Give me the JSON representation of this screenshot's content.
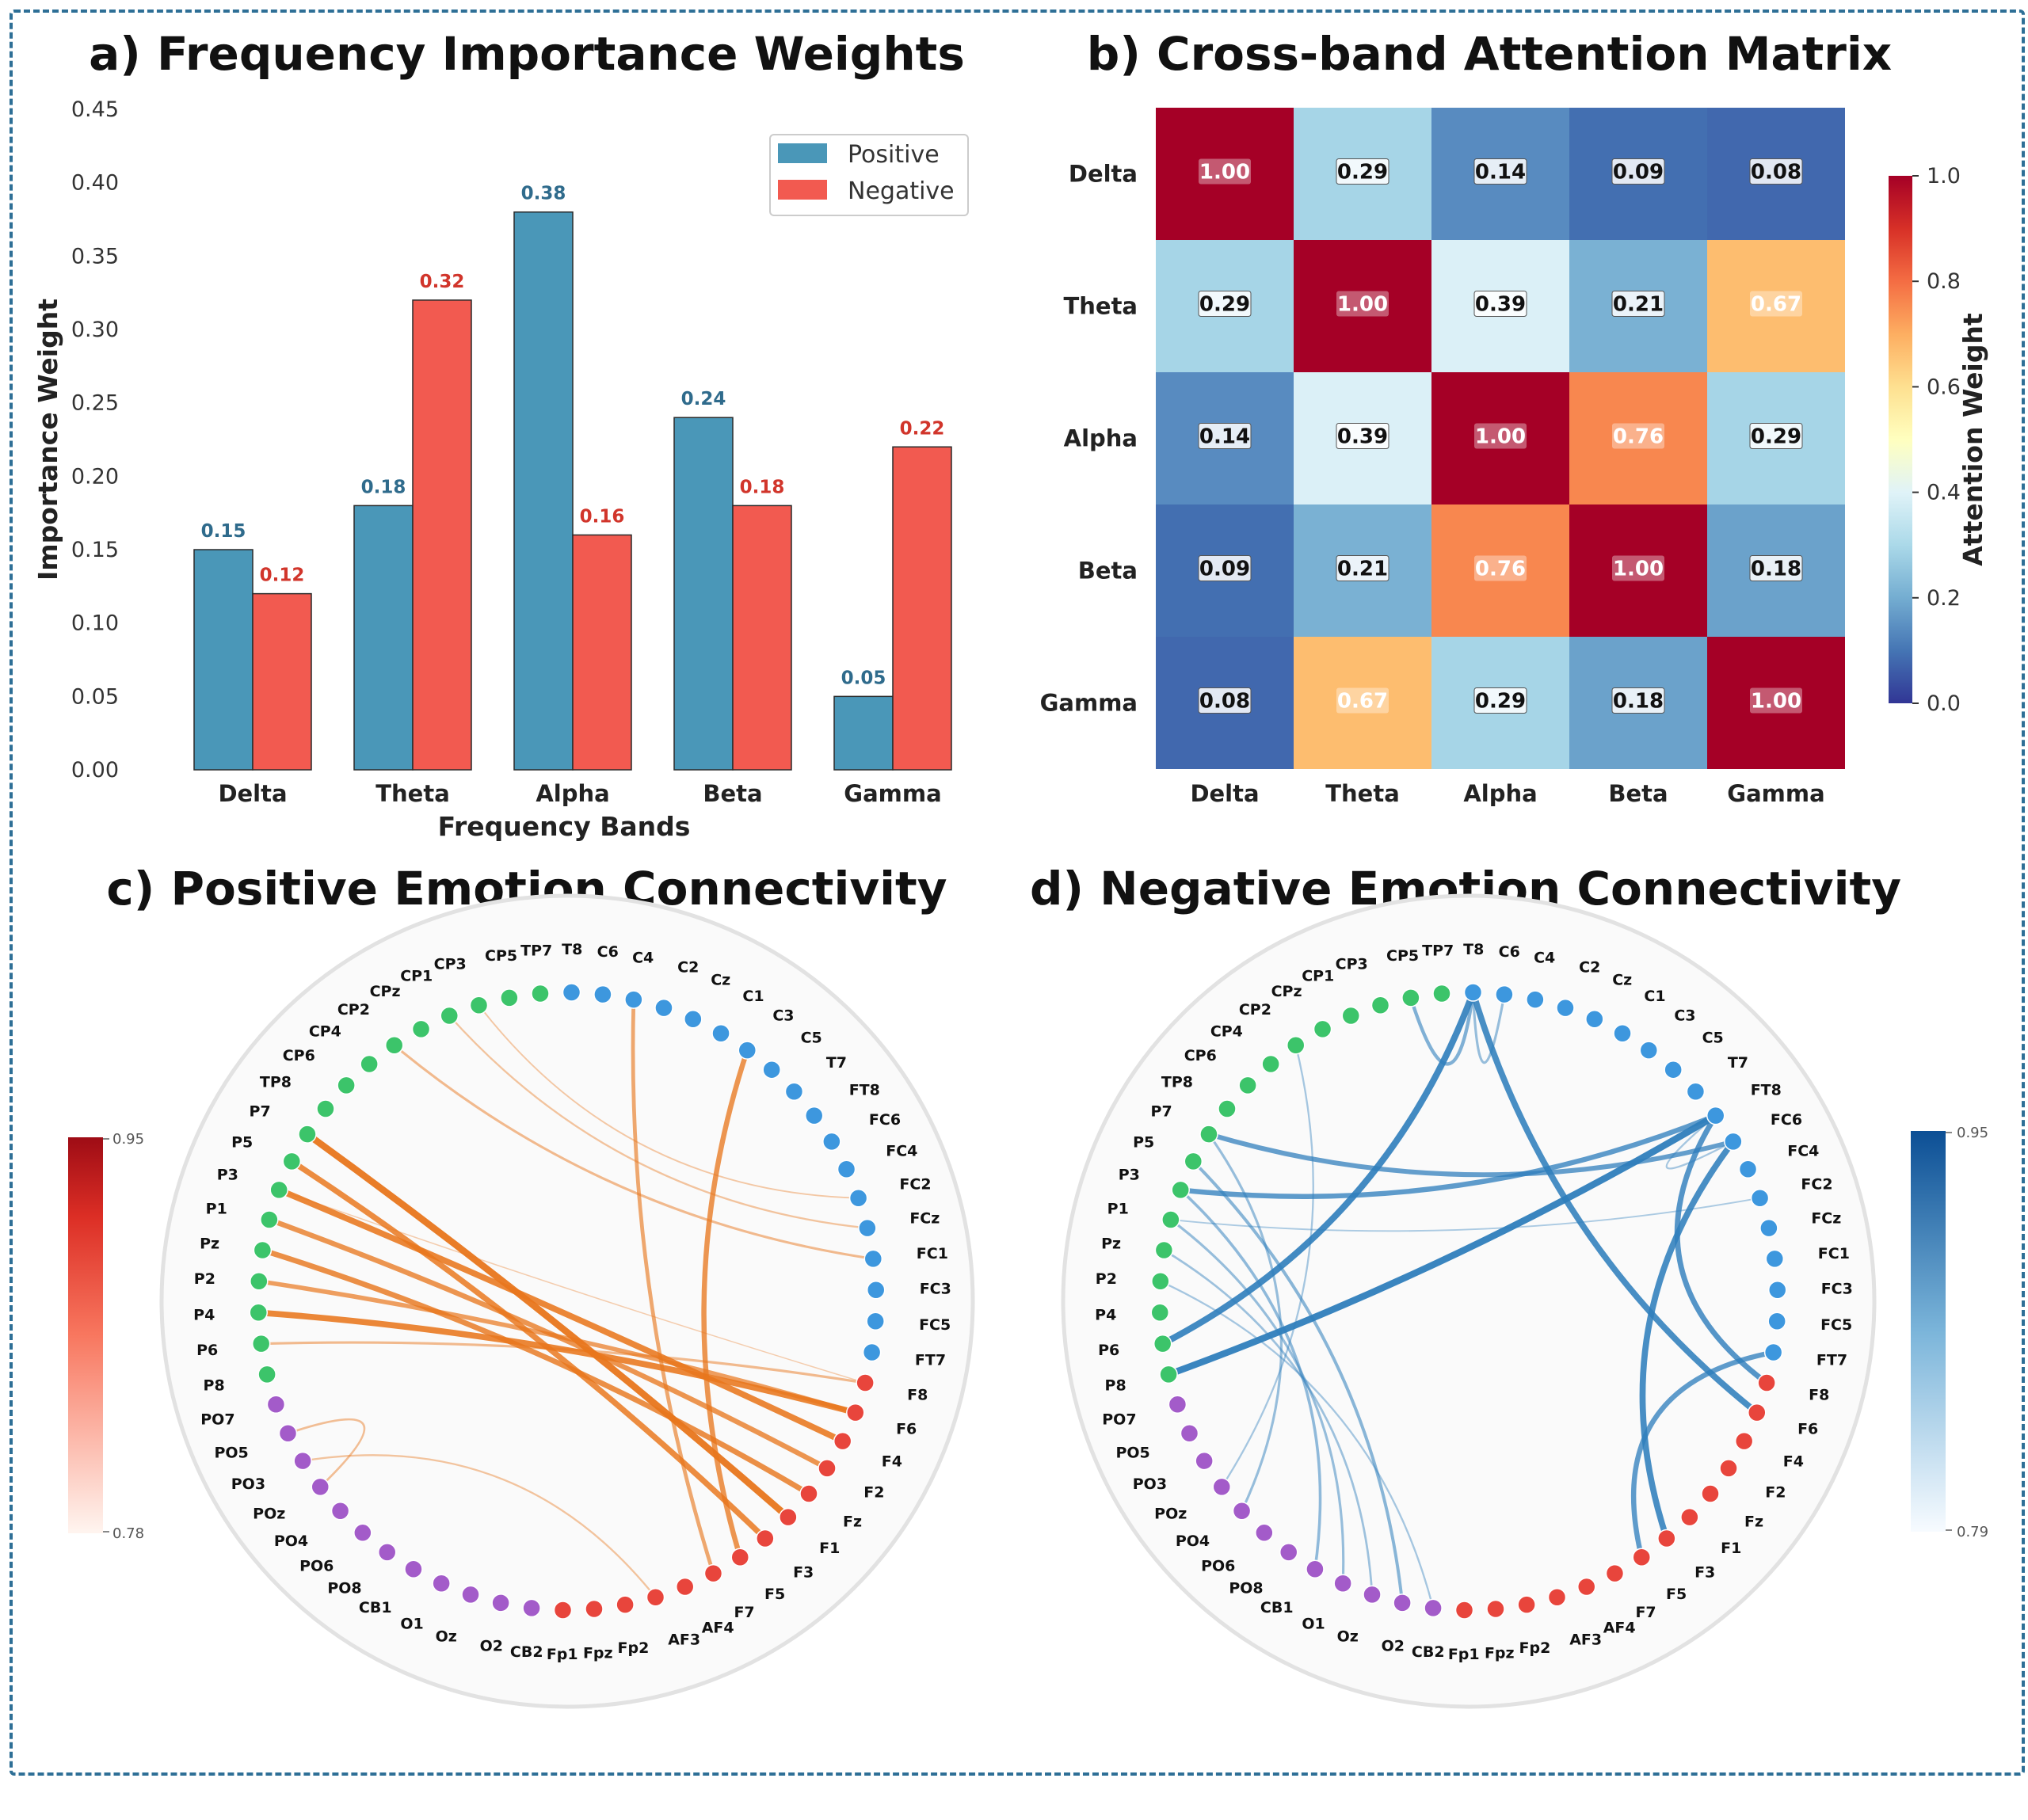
{
  "chart_data": [
    {
      "type": "bar",
      "title": "a) Frequency Importance Weights",
      "xlabel": "Frequency Bands",
      "ylabel": "Importance Weight",
      "categories": [
        "Delta",
        "Theta",
        "Alpha",
        "Beta",
        "Gamma"
      ],
      "series": [
        {
          "name": "Positive",
          "color": "#4a97b8",
          "values": [
            0.15,
            0.18,
            0.38,
            0.24,
            0.05
          ],
          "labels": [
            "0.15",
            "0.18",
            "0.38",
            "0.24",
            "0.05"
          ]
        },
        {
          "name": "Negative",
          "color": "#f25a50",
          "values": [
            0.12,
            0.32,
            0.16,
            0.18,
            0.22
          ],
          "labels": [
            "0.12",
            "0.32",
            "0.16",
            "0.18",
            "0.22"
          ]
        }
      ],
      "ylim": [
        0,
        0.45
      ],
      "yticks": [
        "0.00",
        "0.05",
        "0.10",
        "0.15",
        "0.20",
        "0.25",
        "0.30",
        "0.35",
        "0.40",
        "0.45"
      ],
      "legend_position": "top-right"
    },
    {
      "type": "heatmap",
      "title": "b) Cross-band Attention Matrix",
      "rows": [
        "Delta",
        "Theta",
        "Alpha",
        "Beta",
        "Gamma"
      ],
      "cols": [
        "Delta",
        "Theta",
        "Alpha",
        "Beta",
        "Gamma"
      ],
      "values": [
        [
          1.0,
          0.29,
          0.14,
          0.09,
          0.08
        ],
        [
          0.29,
          1.0,
          0.39,
          0.21,
          0.67
        ],
        [
          0.14,
          0.39,
          1.0,
          0.76,
          0.29
        ],
        [
          0.09,
          0.21,
          0.76,
          1.0,
          0.18
        ],
        [
          0.08,
          0.67,
          0.29,
          0.18,
          1.0
        ]
      ],
      "labels": [
        [
          "1.00",
          "0.29",
          "0.14",
          "0.09",
          "0.08"
        ],
        [
          "0.29",
          "1.00",
          "0.39",
          "0.21",
          "0.67"
        ],
        [
          "0.14",
          "0.39",
          "1.00",
          "0.76",
          "0.29"
        ],
        [
          "0.09",
          "0.21",
          "0.76",
          "1.00",
          "0.18"
        ],
        [
          "0.08",
          "0.67",
          "0.29",
          "0.18",
          "1.00"
        ]
      ],
      "colorbar": {
        "label": "Attention Weight",
        "range": [
          0,
          1.0
        ],
        "ticks": [
          "0.0",
          "0.2",
          "0.4",
          "0.6",
          "0.8",
          "1.0"
        ]
      }
    },
    {
      "type": "network",
      "title": "c) Positive Emotion Connectivity",
      "edge_color": "#e8761c",
      "colorbar": {
        "min_label": "0.78",
        "max_label": "0.95"
      },
      "edges": [
        [
          "P7",
          "F1",
          0.95
        ],
        [
          "P5",
          "F3",
          0.92
        ],
        [
          "P3",
          "F4",
          0.93
        ],
        [
          "P1",
          "F2",
          0.9
        ],
        [
          "Pz",
          "Fz",
          0.91
        ],
        [
          "P2",
          "F6",
          0.88
        ],
        [
          "P4",
          "F6",
          0.93
        ],
        [
          "P6",
          "F8",
          0.82
        ],
        [
          "C4",
          "F7",
          0.86
        ],
        [
          "C3",
          "F5",
          0.9
        ],
        [
          "CP1",
          "FCz",
          0.8
        ],
        [
          "CP2",
          "FC1",
          0.82
        ],
        [
          "CP3",
          "FC2",
          0.79
        ],
        [
          "P3",
          "F8",
          0.78
        ],
        [
          "PO3",
          "AF3",
          0.8
        ],
        [
          "POz",
          "PO5",
          0.81
        ]
      ]
    },
    {
      "type": "network",
      "title": "d) Negative Emotion Connectivity",
      "edge_color": "#2f7ebc",
      "colorbar": {
        "min_label": "0.79",
        "max_label": "0.95"
      },
      "edges": [
        [
          "T8",
          "P6",
          0.94
        ],
        [
          "T8",
          "F6",
          0.93
        ],
        [
          "FT8",
          "P8",
          0.95
        ],
        [
          "FT8",
          "P3",
          0.9
        ],
        [
          "FC6",
          "F3",
          0.93
        ],
        [
          "FT8",
          "F8",
          0.91
        ],
        [
          "FT7",
          "F5",
          0.9
        ],
        [
          "P7",
          "FC6",
          0.89
        ],
        [
          "T8",
          "C6",
          0.82
        ],
        [
          "T8",
          "CP5",
          0.85
        ],
        [
          "P3",
          "CB1",
          0.83
        ],
        [
          "P5",
          "O2",
          0.84
        ],
        [
          "P1",
          "O1",
          0.82
        ],
        [
          "Pz",
          "Oz",
          0.81
        ],
        [
          "P2",
          "CB2",
          0.8
        ],
        [
          "CP2",
          "POz",
          0.8
        ],
        [
          "P7",
          "PO4",
          0.82
        ],
        [
          "FC2",
          "P1",
          0.79
        ],
        [
          "FT8",
          "FC6",
          0.8
        ]
      ]
    }
  ],
  "electrodes": [
    {
      "name": "TP7",
      "region": "green"
    },
    {
      "name": "T8",
      "region": "blue"
    },
    {
      "name": "C6",
      "region": "blue"
    },
    {
      "name": "C4",
      "region": "blue"
    },
    {
      "name": "C2",
      "region": "blue"
    },
    {
      "name": "Cz",
      "region": "blue"
    },
    {
      "name": "C1",
      "region": "blue"
    },
    {
      "name": "C3",
      "region": "blue"
    },
    {
      "name": "C5",
      "region": "blue"
    },
    {
      "name": "T7",
      "region": "blue"
    },
    {
      "name": "FT8",
      "region": "blue"
    },
    {
      "name": "FC6",
      "region": "blue"
    },
    {
      "name": "FC4",
      "region": "blue"
    },
    {
      "name": "FC2",
      "region": "blue"
    },
    {
      "name": "FCz",
      "region": "blue"
    },
    {
      "name": "FC1",
      "region": "blue"
    },
    {
      "name": "FC3",
      "region": "blue"
    },
    {
      "name": "FC5",
      "region": "blue"
    },
    {
      "name": "FT7",
      "region": "blue"
    },
    {
      "name": "F8",
      "region": "red"
    },
    {
      "name": "F6",
      "region": "red"
    },
    {
      "name": "F4",
      "region": "red"
    },
    {
      "name": "F2",
      "region": "red"
    },
    {
      "name": "Fz",
      "region": "red"
    },
    {
      "name": "F1",
      "region": "red"
    },
    {
      "name": "F3",
      "region": "red"
    },
    {
      "name": "F5",
      "region": "red"
    },
    {
      "name": "F7",
      "region": "red"
    },
    {
      "name": "AF4",
      "region": "red"
    },
    {
      "name": "AF3",
      "region": "red"
    },
    {
      "name": "Fp2",
      "region": "red"
    },
    {
      "name": "Fpz",
      "region": "red"
    },
    {
      "name": "Fp1",
      "region": "red"
    },
    {
      "name": "CB2",
      "region": "purple"
    },
    {
      "name": "O2",
      "region": "purple"
    },
    {
      "name": "Oz",
      "region": "purple"
    },
    {
      "name": "O1",
      "region": "purple"
    },
    {
      "name": "CB1",
      "region": "purple"
    },
    {
      "name": "PO8",
      "region": "purple"
    },
    {
      "name": "PO6",
      "region": "purple"
    },
    {
      "name": "PO4",
      "region": "purple"
    },
    {
      "name": "POz",
      "region": "purple"
    },
    {
      "name": "PO3",
      "region": "purple"
    },
    {
      "name": "PO5",
      "region": "purple"
    },
    {
      "name": "PO7",
      "region": "purple"
    },
    {
      "name": "P8",
      "region": "green"
    },
    {
      "name": "P6",
      "region": "green"
    },
    {
      "name": "P4",
      "region": "green"
    },
    {
      "name": "P2",
      "region": "green"
    },
    {
      "name": "Pz",
      "region": "green"
    },
    {
      "name": "P1",
      "region": "green"
    },
    {
      "name": "P3",
      "region": "green"
    },
    {
      "name": "P5",
      "region": "green"
    },
    {
      "name": "P7",
      "region": "green"
    },
    {
      "name": "TP8",
      "region": "green"
    },
    {
      "name": "CP6",
      "region": "green"
    },
    {
      "name": "CP4",
      "region": "green"
    },
    {
      "name": "CP2",
      "region": "green"
    },
    {
      "name": "CPz",
      "region": "green"
    },
    {
      "name": "CP1",
      "region": "green"
    },
    {
      "name": "CP3",
      "region": "green"
    },
    {
      "name": "CP5",
      "region": "green"
    }
  ],
  "region_colors": {
    "green": "#3cc46a",
    "blue": "#3d97de",
    "red": "#e8453c",
    "purple": "#a35bc9"
  }
}
